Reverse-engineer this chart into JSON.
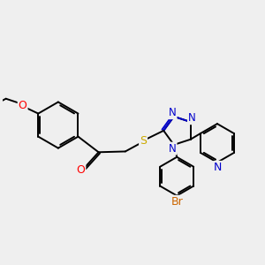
{
  "bg_color": "#efefef",
  "bond_color": "#000000",
  "bond_width": 1.4,
  "atom_colors": {
    "O": "#ff0000",
    "N": "#0000cc",
    "S": "#ccaa00",
    "Br": "#cc6600",
    "C": "#000000"
  },
  "fs": 8.5
}
